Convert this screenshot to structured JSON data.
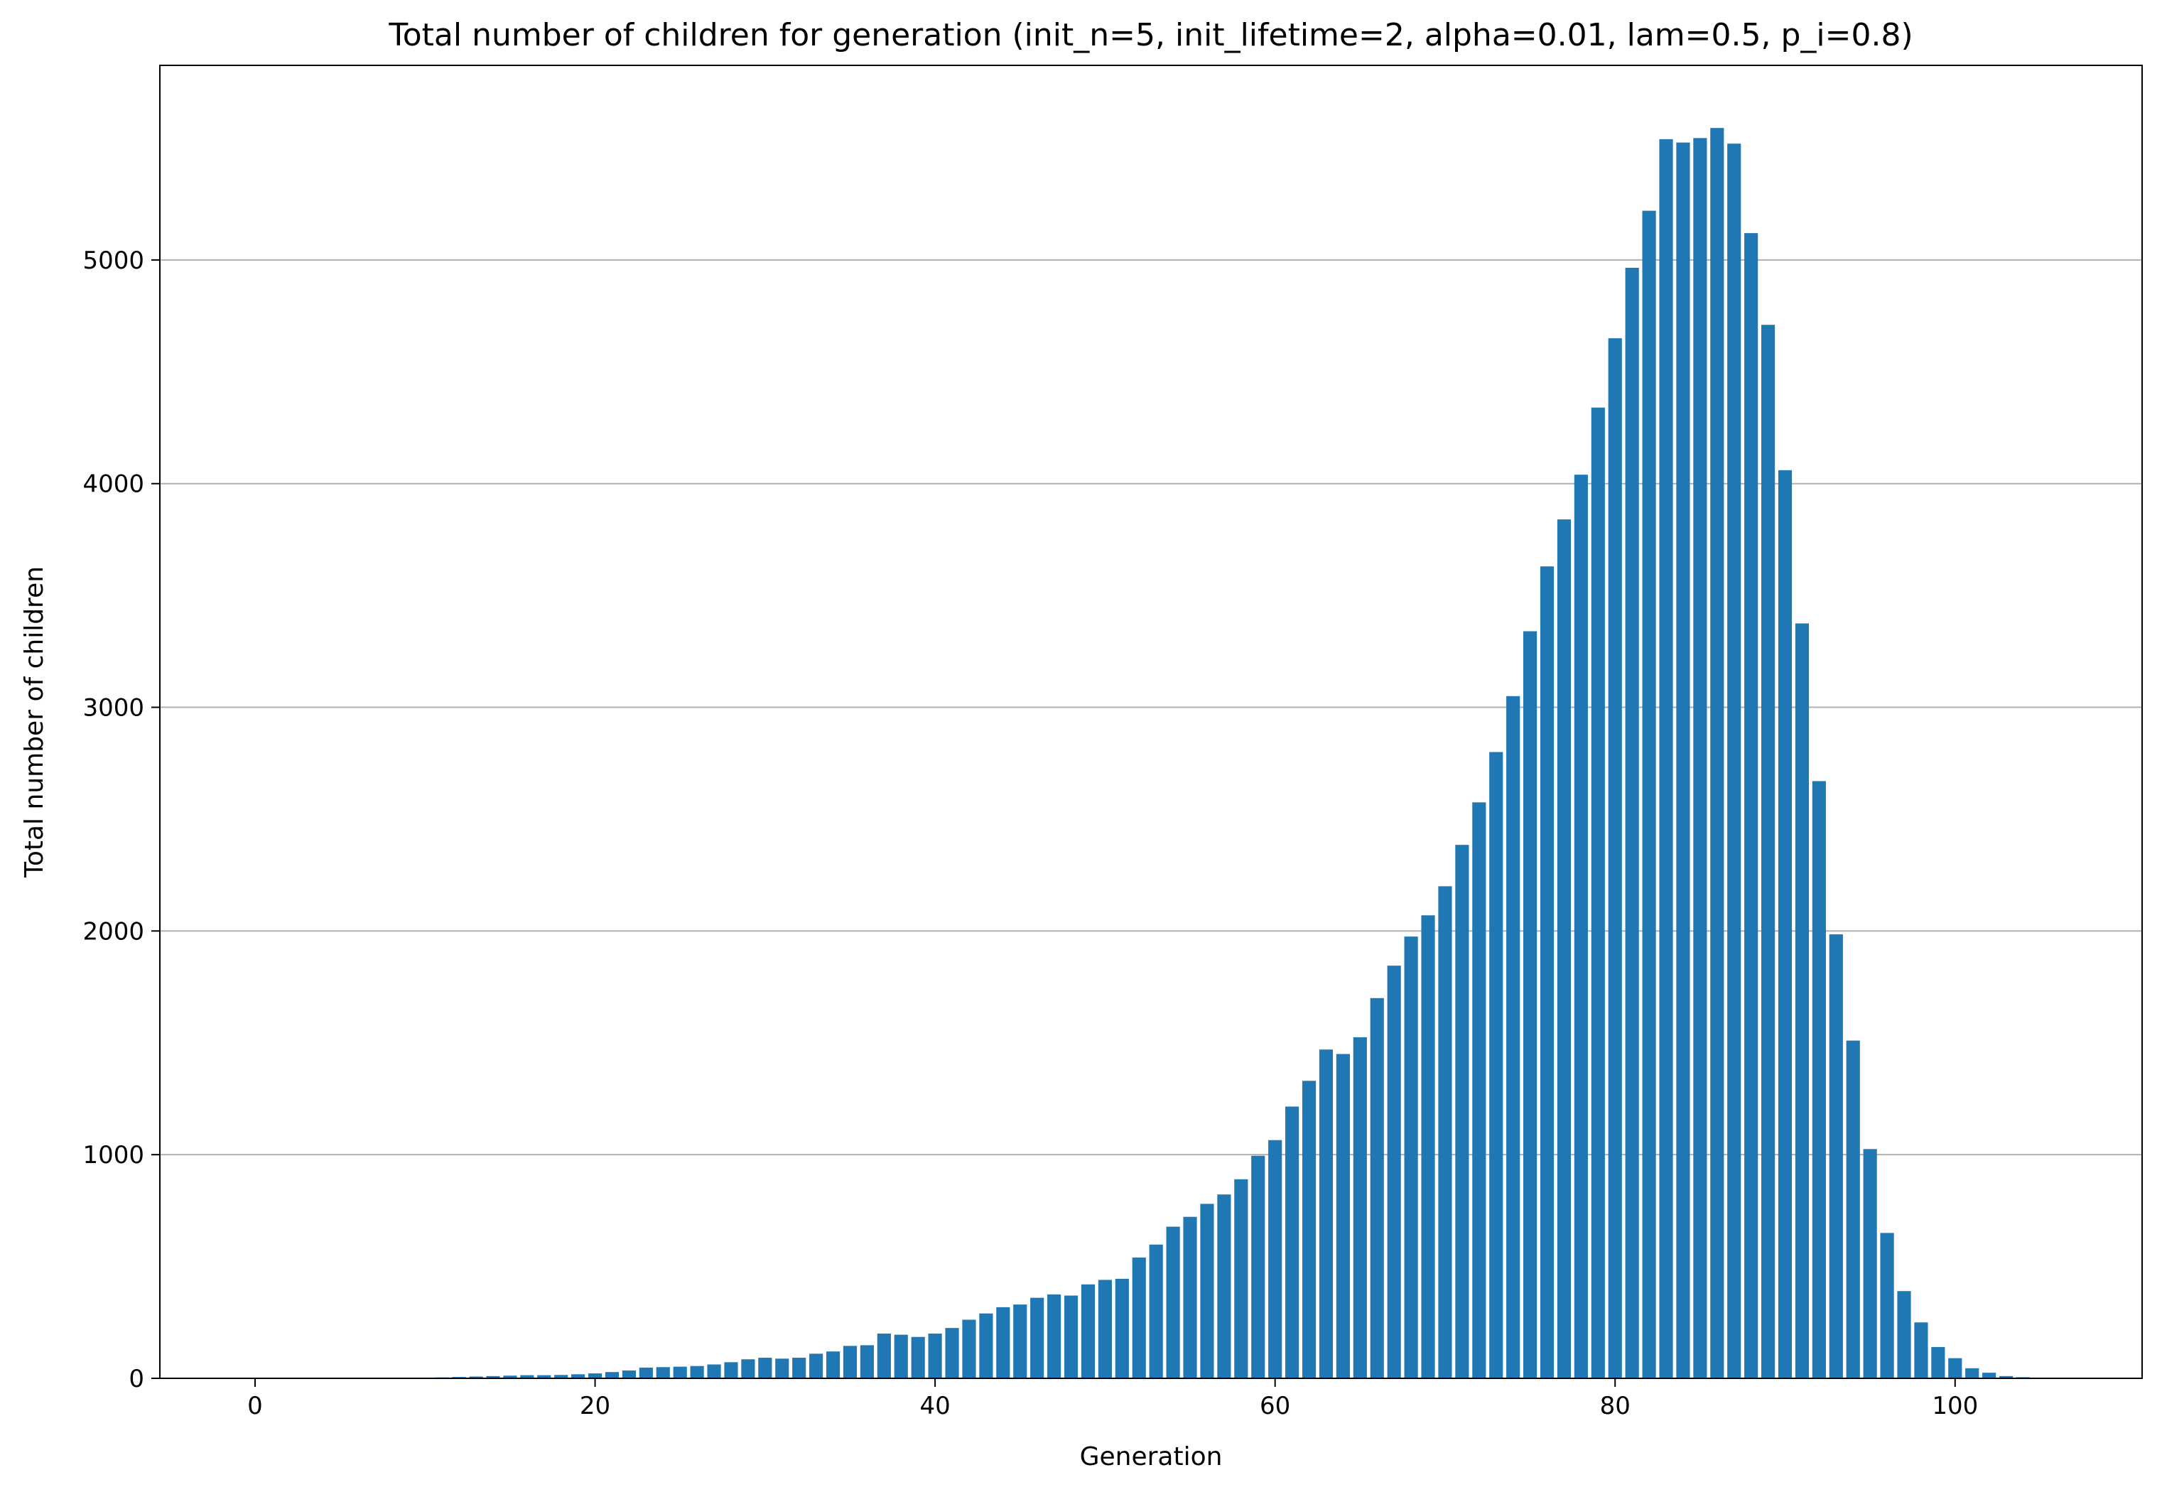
{
  "chart_data": {
    "type": "bar",
    "title": "Total number of children for generation (init_n=5, init_lifetime=2, alpha=0.01, lam=0.5, p_i=0.8)",
    "xlabel": "Generation",
    "ylabel": "Total number of children",
    "xlim": [
      -5.6,
      111
    ],
    "ylim": [
      0,
      5870
    ],
    "xticks": [
      0,
      20,
      40,
      60,
      80,
      100
    ],
    "yticks": [
      0,
      1000,
      2000,
      3000,
      4000,
      5000
    ],
    "grid": "y",
    "bar_color": "#1f77b4",
    "x": [
      0,
      1,
      2,
      3,
      4,
      5,
      6,
      7,
      8,
      9,
      10,
      11,
      12,
      13,
      14,
      15,
      16,
      17,
      18,
      19,
      20,
      21,
      22,
      23,
      24,
      25,
      26,
      27,
      28,
      29,
      30,
      31,
      32,
      33,
      34,
      35,
      36,
      37,
      38,
      39,
      40,
      41,
      42,
      43,
      44,
      45,
      46,
      47,
      48,
      49,
      50,
      51,
      52,
      53,
      54,
      55,
      56,
      57,
      58,
      59,
      60,
      61,
      62,
      63,
      64,
      65,
      66,
      67,
      68,
      69,
      70,
      71,
      72,
      73,
      74,
      75,
      76,
      77,
      78,
      79,
      80,
      81,
      82,
      83,
      84,
      85,
      86,
      87,
      88,
      89,
      90,
      91,
      92,
      93,
      94,
      95,
      96,
      97,
      98,
      99,
      100,
      101,
      102,
      103,
      104,
      105,
      106,
      107
    ],
    "values": [
      0,
      0,
      0,
      0,
      0,
      0,
      0,
      0,
      0,
      0,
      2,
      4,
      6,
      8,
      10,
      12,
      14,
      14,
      15,
      18,
      22,
      28,
      35,
      48,
      50,
      52,
      55,
      62,
      72,
      85,
      92,
      88,
      92,
      110,
      120,
      145,
      148,
      200,
      195,
      185,
      200,
      225,
      262,
      290,
      318,
      330,
      360,
      375,
      370,
      420,
      440,
      445,
      540,
      598,
      678,
      722,
      780,
      822,
      890,
      995,
      1065,
      1215,
      1330,
      1470,
      1450,
      1525,
      1700,
      1845,
      1975,
      2070,
      2200,
      2385,
      2575,
      2800,
      3050,
      3340,
      3630,
      3840,
      4040,
      4340,
      4650,
      4965,
      5220,
      5540,
      5525,
      5545,
      5590,
      5520,
      5120,
      4710,
      4060,
      3375,
      2670,
      1985,
      1510,
      1025,
      650,
      390,
      250,
      140,
      90,
      45,
      25,
      10,
      5,
      2,
      1,
      0
    ]
  }
}
